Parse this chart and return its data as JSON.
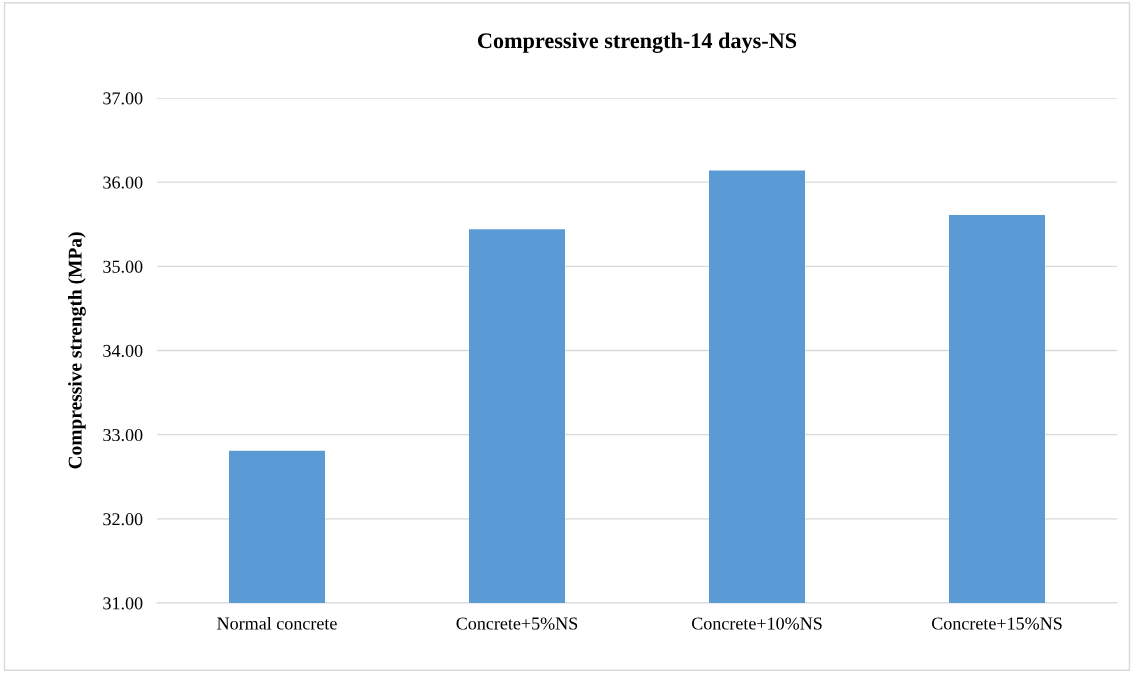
{
  "chart_data": {
    "type": "bar",
    "title": "Compressive strength-14 days-NS",
    "ylabel": "Compressive strength (MPa)",
    "categories": [
      "Normal concrete",
      "Concrete+5%NS",
      "Concrete+10%NS",
      "Concrete+15%NS"
    ],
    "values": [
      32.81,
      35.44,
      36.14,
      35.61
    ],
    "color": "#5b9bd5",
    "ylim": [
      31,
      37
    ],
    "yticks": [
      {
        "value": 31,
        "label": "31.00"
      },
      {
        "value": 32,
        "label": "32.00"
      },
      {
        "value": 33,
        "label": "33.00"
      },
      {
        "value": 34,
        "label": "34.00"
      },
      {
        "value": 35,
        "label": "35.00"
      },
      {
        "value": 36,
        "label": "36.00"
      },
      {
        "value": 37,
        "label": "37.00"
      }
    ],
    "grid": "y"
  }
}
